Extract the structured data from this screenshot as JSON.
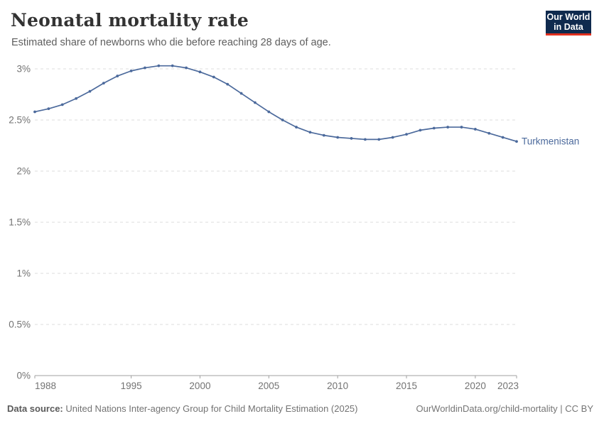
{
  "header": {
    "title": "Neonatal mortality rate",
    "subtitle": "Estimated share of newborns who die before reaching 28 days of age."
  },
  "logo": {
    "line1": "Our World",
    "line2": "in Data",
    "bg_color": "#0f2a4e",
    "accent_color": "#e0301e"
  },
  "footer": {
    "data_source_label": "Data source:",
    "data_source_text": " United Nations Inter-agency Group for Child Mortality Estimation (2025)",
    "url_text": "OurWorldinData.org/child-mortality",
    "separator": " | ",
    "license_text": "CC BY"
  },
  "chart_data": {
    "type": "line",
    "title": "Neonatal mortality rate",
    "subtitle": "Estimated share of newborns who die before reaching 28 days of age.",
    "xlabel": "",
    "ylabel": "",
    "grid": "horizontal-dashed",
    "legend_position": "end-of-line-label",
    "ylim": [
      0,
      3
    ],
    "yticks": [
      0,
      0.5,
      1,
      1.5,
      2,
      2.5,
      3
    ],
    "ytick_labels": [
      "0%",
      "0.5%",
      "1%",
      "1.5%",
      "2%",
      "2.5%",
      "3%"
    ],
    "xticks": [
      1988,
      1995,
      2000,
      2005,
      2010,
      2015,
      2020,
      2023
    ],
    "x": [
      1988,
      1989,
      1990,
      1991,
      1992,
      1993,
      1994,
      1995,
      1996,
      1997,
      1998,
      1999,
      2000,
      2001,
      2002,
      2003,
      2004,
      2005,
      2006,
      2007,
      2008,
      2009,
      2010,
      2011,
      2012,
      2013,
      2014,
      2015,
      2016,
      2017,
      2018,
      2019,
      2020,
      2021,
      2022,
      2023
    ],
    "series": [
      {
        "name": "Turkmenistan",
        "color": "#4c6a9c",
        "values": [
          2.58,
          2.61,
          2.65,
          2.71,
          2.78,
          2.86,
          2.93,
          2.98,
          3.01,
          3.03,
          3.03,
          3.01,
          2.97,
          2.92,
          2.85,
          2.76,
          2.67,
          2.58,
          2.5,
          2.43,
          2.38,
          2.35,
          2.33,
          2.32,
          2.31,
          2.31,
          2.33,
          2.36,
          2.4,
          2.42,
          2.43,
          2.43,
          2.41,
          2.37,
          2.33,
          2.29
        ]
      }
    ],
    "axis_color": "#a0a0a0",
    "gridline_color": "#dcdcdc",
    "tick_label_color": "#737373"
  }
}
